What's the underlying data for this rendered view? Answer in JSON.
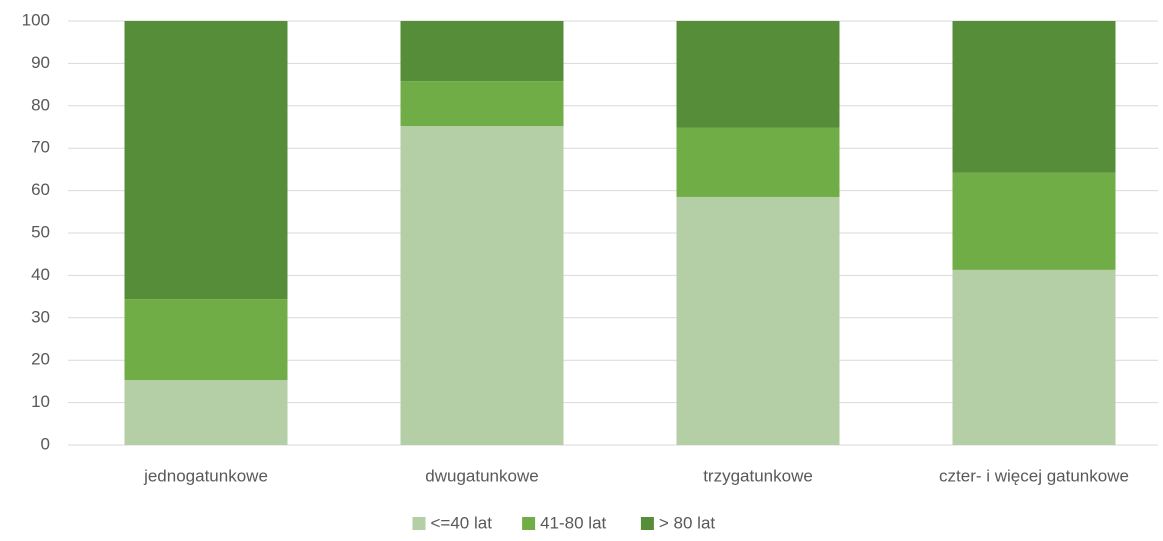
{
  "chart_data": {
    "type": "stacked_bar",
    "categories": [
      "jednogatunkowe",
      "dwugatunkowe",
      "trzygatunkowe",
      "czter- i więcej gatunkowe"
    ],
    "series": [
      {
        "name": "<=40 lat",
        "color": "#b4cea6",
        "values": [
          15.3,
          75.2,
          58.5,
          41.3
        ]
      },
      {
        "name": "41-80 lat",
        "color": "#70ad47",
        "values": [
          19.1,
          10.6,
          16.3,
          22.9
        ]
      },
      {
        "name": "> 80 lat",
        "color": "#568d38",
        "values": [
          65.6,
          14.2,
          25.2,
          35.8
        ]
      }
    ],
    "ylim": [
      0,
      100
    ],
    "yticks": [
      0,
      10,
      20,
      30,
      40,
      50,
      60,
      70,
      80,
      90,
      100
    ],
    "grid": true,
    "legend": "bottom"
  }
}
